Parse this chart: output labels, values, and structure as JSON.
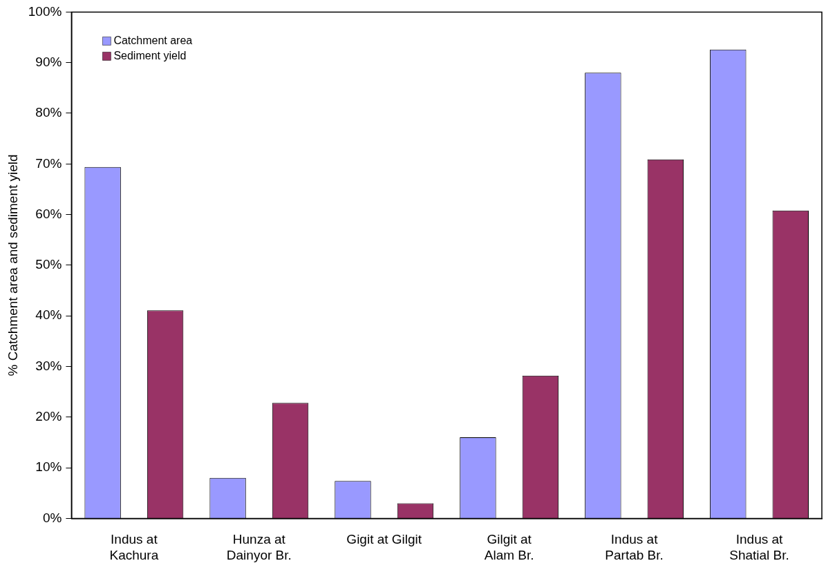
{
  "chart_data": {
    "type": "bar",
    "ylabel": "% Catchment area and sediment yield",
    "categories": [
      "Indus at\nKachura",
      "Hunza at\nDainyor Br.",
      "Gigit at Gilgit",
      "Gilgit at\nAlam Br.",
      "Indus at\nPartab Br.",
      "Indus at\nShatial Br."
    ],
    "series": [
      {
        "name": "Catchment area",
        "color": "#9999ff",
        "values": [
          69.4,
          8.0,
          7.4,
          16.0,
          88.0,
          92.6
        ]
      },
      {
        "name": "Sediment yield",
        "color": "#993366",
        "values": [
          41.1,
          22.8,
          3.0,
          28.2,
          70.9,
          60.8
        ]
      }
    ],
    "ylim": [
      0,
      100
    ],
    "yticks": [
      {
        "value": 0,
        "label": "0%"
      },
      {
        "value": 10,
        "label": "10%"
      },
      {
        "value": 20,
        "label": "20%"
      },
      {
        "value": 30,
        "label": "30%"
      },
      {
        "value": 40,
        "label": "40%"
      },
      {
        "value": 50,
        "label": "50%"
      },
      {
        "value": 60,
        "label": "60%"
      },
      {
        "value": 70,
        "label": "70%"
      },
      {
        "value": 80,
        "label": "80%"
      },
      {
        "value": 90,
        "label": "90%"
      },
      {
        "value": 100,
        "label": "100%"
      }
    ],
    "legend": "top left"
  }
}
